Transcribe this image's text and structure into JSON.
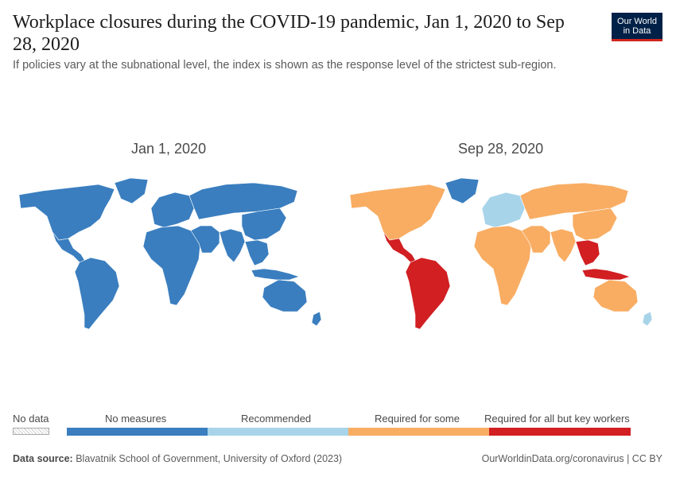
{
  "header": {
    "title": "Workplace closures during the COVID-19 pandemic, Jan 1, 2020 to Sep 28, 2020",
    "subtitle": "If policies vary at the subnational level, the index is shown as the response level of the strictest sub-region.",
    "logo_line1": "Our World",
    "logo_line2": "in Data"
  },
  "chart_data": {
    "type": "choropleth-map",
    "title": "Workplace closures during the COVID-19 pandemic, Jan 1, 2020 to Sep 28, 2020",
    "maps": [
      {
        "label": "Jan 1, 2020",
        "regions": {
          "north_america": "No measures",
          "greenland": "No measures",
          "mexico_central_america": "No measures",
          "south_america": "No measures",
          "europe": "No measures",
          "africa": "No measures",
          "russia_central_asia": "No measures",
          "middle_east": "No measures",
          "south_asia": "No measures",
          "east_asia": "No measures",
          "southeast_asia": "No measures",
          "indonesia": "No measures",
          "australia": "No measures",
          "new_zealand": "No measures"
        }
      },
      {
        "label": "Sep 28, 2020",
        "regions": {
          "north_america": "Required for some",
          "greenland": "No measures",
          "mexico_central_america": "Required for all but key workers",
          "south_america": "Required for all but key workers",
          "europe": "Recommended",
          "africa": "Required for some",
          "russia_central_asia": "Required for some",
          "middle_east": "Required for some",
          "south_asia": "Required for some",
          "east_asia": "Required for some",
          "southeast_asia": "Required for all but key workers",
          "indonesia": "Required for all but key workers",
          "australia": "Required for some",
          "new_zealand": "Recommended"
        }
      }
    ],
    "legend": {
      "no_data_label": "No data",
      "categories": [
        {
          "label": "No measures",
          "color": "#3a7ebf"
        },
        {
          "label": "Recommended",
          "color": "#a8d4ea"
        },
        {
          "label": "Required for some",
          "color": "#f8ad63"
        },
        {
          "label": "Required for all but key workers",
          "color": "#d11f22"
        }
      ]
    }
  },
  "footer": {
    "source_label": "Data source:",
    "source_text": "Blavatnik School of Government, University of Oxford (2023)",
    "url_text": "OurWorldinData.org/coronavirus | CC BY"
  }
}
